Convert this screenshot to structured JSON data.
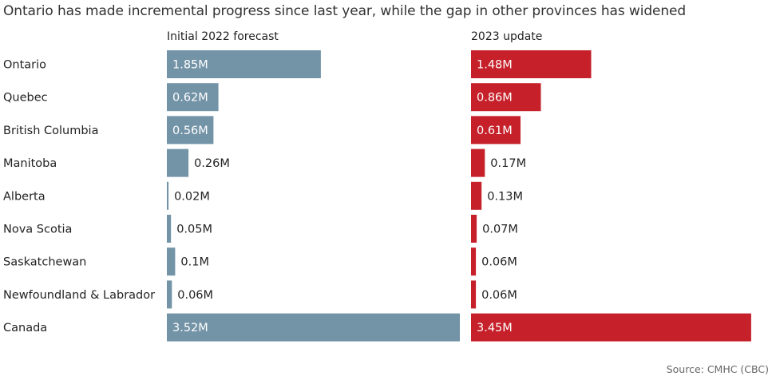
{
  "title": "Ontario has made incremental progress since last year, while the gap in other provinces has widened",
  "source": "Source: CMHC (CBC)",
  "colors": {
    "series_2022": "#7393a7",
    "series_2023": "#c6202a"
  },
  "chart_data": {
    "type": "bar",
    "orientation": "horizontal",
    "categories": [
      "Ontario",
      "Quebec",
      "British Columbia",
      "Manitoba",
      "Alberta",
      "Nova Scotia",
      "Saskatchewan",
      "Newfoundland & Labrador",
      "Canada"
    ],
    "series": [
      {
        "name": "Initial 2022 forecast",
        "values": [
          1.85,
          0.62,
          0.56,
          0.26,
          0.02,
          0.05,
          0.1,
          0.06,
          3.52
        ],
        "labels": [
          "1.85M",
          "0.62M",
          "0.56M",
          "0.26M",
          "0.02M",
          "0.05M",
          "0.1M",
          "0.06M",
          "3.52M"
        ]
      },
      {
        "name": "2023 update",
        "values": [
          1.48,
          0.86,
          0.61,
          0.17,
          0.13,
          0.07,
          0.06,
          0.06,
          3.45
        ],
        "labels": [
          "1.48M",
          "0.86M",
          "0.61M",
          "0.17M",
          "0.13M",
          "0.07M",
          "0.06M",
          "0.06M",
          "3.45M"
        ]
      }
    ],
    "xlim": [
      0,
      3.52
    ],
    "grid": false,
    "legend": "column headers"
  }
}
